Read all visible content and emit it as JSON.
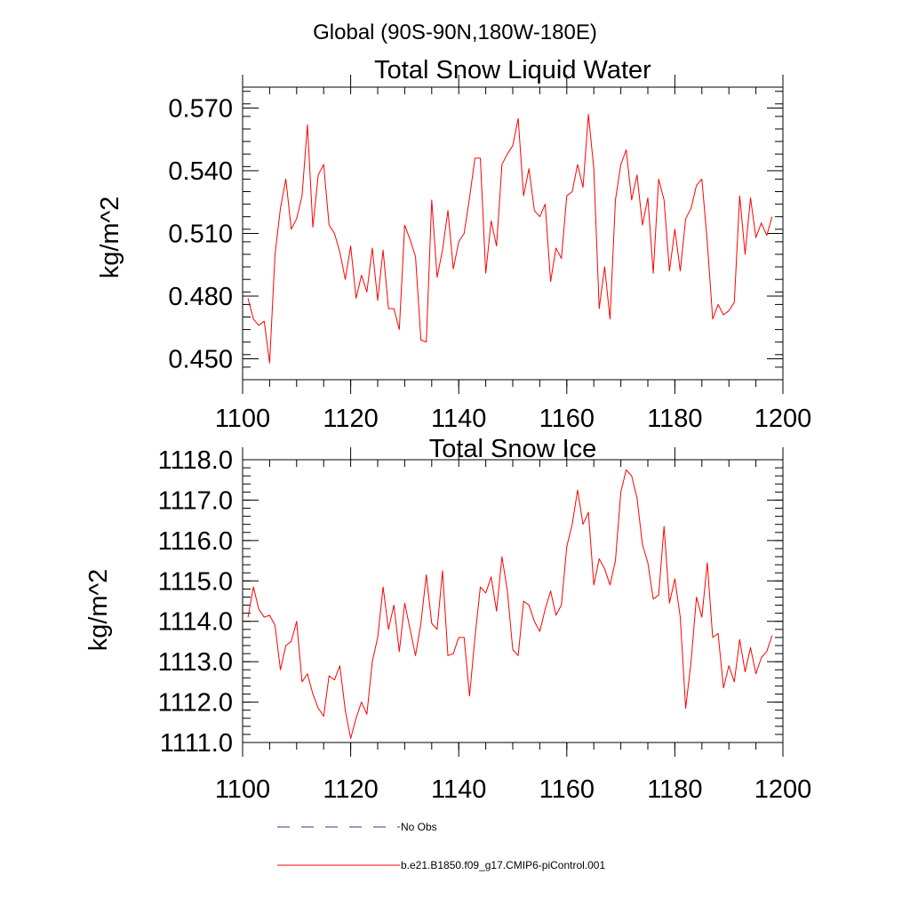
{
  "figure": {
    "suptitle": "Global (90S-90N,180W-180E)"
  },
  "colors": {
    "model_line": "#ff0000",
    "obs_line": "#2b3a8c",
    "axis": "#000000"
  },
  "legend": [
    {
      "label": "No Obs",
      "style": "dashed",
      "color": "#2b3a8c"
    },
    {
      "label": "b.e21.B1850.f09_g17.CMIP6-piControl.001",
      "style": "solid",
      "color": "#ff0000"
    }
  ],
  "chart_data": [
    {
      "type": "line",
      "title": "Total Snow Liquid Water",
      "xlabel": "",
      "ylabel": "kg/m^2",
      "xlim": [
        1100,
        1200
      ],
      "ylim": [
        0.44,
        0.58
      ],
      "xticks": [
        1100,
        1120,
        1140,
        1160,
        1180,
        1200
      ],
      "xtick_labels": [
        "1100",
        "1120",
        "1140",
        "1160",
        "1180",
        "1200"
      ],
      "yticks": [
        0.45,
        0.48,
        0.51,
        0.54,
        0.57
      ],
      "ytick_labels": [
        "0.450",
        "0.480",
        "0.510",
        "0.540",
        "0.570"
      ],
      "yminor_step": 0.006,
      "xminor_step": 5,
      "grid": false,
      "x_start": 1101,
      "x_step": 1,
      "series": [
        {
          "name": "b.e21.B1850.f09_g17.CMIP6-piControl.001",
          "values": [
            0.479,
            0.469,
            0.466,
            0.468,
            0.448,
            0.5,
            0.522,
            0.536,
            0.512,
            0.517,
            0.528,
            0.562,
            0.513,
            0.538,
            0.543,
            0.514,
            0.51,
            0.501,
            0.488,
            0.504,
            0.479,
            0.49,
            0.482,
            0.503,
            0.478,
            0.502,
            0.474,
            0.474,
            0.464,
            0.514,
            0.507,
            0.499,
            0.459,
            0.458,
            0.526,
            0.489,
            0.502,
            0.521,
            0.493,
            0.506,
            0.51,
            0.527,
            0.546,
            0.546,
            0.491,
            0.516,
            0.504,
            0.543,
            0.548,
            0.552,
            0.565,
            0.528,
            0.541,
            0.521,
            0.518,
            0.524,
            0.487,
            0.503,
            0.498,
            0.528,
            0.53,
            0.543,
            0.532,
            0.567,
            0.541,
            0.474,
            0.494,
            0.469,
            0.526,
            0.543,
            0.55,
            0.526,
            0.538,
            0.514,
            0.527,
            0.491,
            0.536,
            0.526,
            0.492,
            0.512,
            0.492,
            0.517,
            0.522,
            0.533,
            0.536,
            0.506,
            0.469,
            0.476,
            0.471,
            0.473,
            0.477,
            0.528,
            0.5,
            0.527,
            0.508,
            0.515,
            0.509,
            0.518
          ]
        }
      ]
    },
    {
      "type": "line",
      "title": "Total Snow Ice",
      "xlabel": "",
      "ylabel": "kg/m^2",
      "xlim": [
        1100,
        1200
      ],
      "ylim": [
        1111.0,
        1118.0
      ],
      "xticks": [
        1100,
        1120,
        1140,
        1160,
        1180,
        1200
      ],
      "xtick_labels": [
        "1100",
        "1120",
        "1140",
        "1160",
        "1180",
        "1200"
      ],
      "yticks": [
        1111.0,
        1112.0,
        1113.0,
        1114.0,
        1115.0,
        1116.0,
        1117.0,
        1118.0
      ],
      "ytick_labels": [
        "1111.0",
        "1112.0",
        "1113.0",
        "1114.0",
        "1115.0",
        "1116.0",
        "1117.0",
        "1118.0"
      ],
      "yminor_step": 0.2,
      "xminor_step": 5,
      "grid": false,
      "x_start": 1101,
      "x_step": 1,
      "series": [
        {
          "name": "b.e21.B1850.f09_g17.CMIP6-piControl.001",
          "values": [
            1114.1,
            1114.85,
            1114.3,
            1114.1,
            1114.15,
            1113.9,
            1112.8,
            1113.4,
            1113.5,
            1114.0,
            1112.5,
            1112.7,
            1112.2,
            1111.85,
            1111.65,
            1112.65,
            1112.55,
            1112.9,
            1111.8,
            1111.1,
            1111.6,
            1112.0,
            1111.7,
            1113.0,
            1113.6,
            1114.85,
            1113.8,
            1114.4,
            1113.25,
            1114.45,
            1113.8,
            1113.15,
            1113.95,
            1115.15,
            1113.95,
            1113.8,
            1115.25,
            1113.15,
            1113.2,
            1113.6,
            1113.6,
            1112.15,
            1113.6,
            1114.85,
            1114.7,
            1115.1,
            1114.25,
            1115.6,
            1114.75,
            1113.3,
            1113.15,
            1114.5,
            1114.4,
            1114.0,
            1113.75,
            1114.3,
            1114.75,
            1114.15,
            1114.4,
            1115.85,
            1116.4,
            1117.25,
            1116.4,
            1116.7,
            1114.9,
            1115.55,
            1115.3,
            1114.9,
            1115.5,
            1117.2,
            1117.75,
            1117.6,
            1117.05,
            1115.9,
            1115.45,
            1114.55,
            1114.65,
            1116.35,
            1114.45,
            1115.05,
            1114.1,
            1111.85,
            1113.0,
            1114.6,
            1114.1,
            1115.45,
            1113.6,
            1113.7,
            1112.35,
            1112.9,
            1112.5,
            1113.55,
            1112.75,
            1113.35,
            1112.7,
            1113.1,
            1113.25,
            1113.65
          ]
        }
      ]
    }
  ]
}
